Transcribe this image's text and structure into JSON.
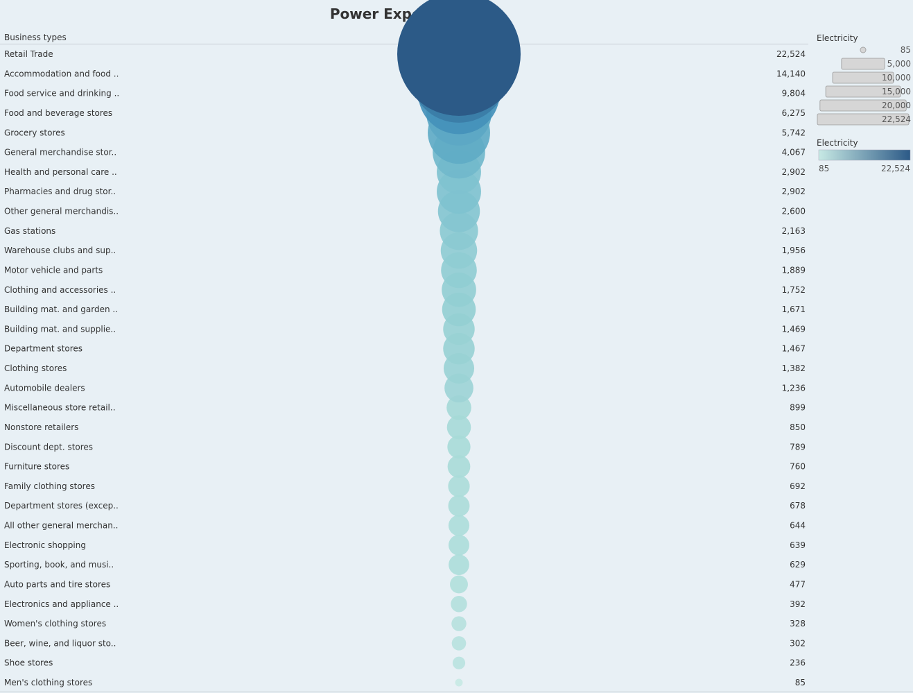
{
  "title": "Power Expenditure",
  "column_header": "Business types",
  "size_legend": {
    "title": "Electricity",
    "values": [
      "85",
      "5,000",
      "10,000",
      "15,000",
      "20,000",
      "22,524"
    ]
  },
  "color_legend": {
    "title": "Electricity",
    "min_label": "85",
    "max_label": "22,524",
    "colors": [
      "#c7e9e4",
      "#2c5a87"
    ]
  },
  "chart_data": {
    "type": "scatter",
    "title": "Power Expenditure",
    "category_header": "Business types",
    "measure": "Electricity",
    "categories": [
      "Retail Trade",
      "Accommodation and food ..",
      "Food service and drinking ..",
      "Food and beverage stores",
      "Grocery stores",
      "General merchandise stor..",
      "Health and personal care ..",
      "Pharmacies and drug stor..",
      "Other general merchandis..",
      "Gas stations",
      "Warehouse clubs and sup..",
      "Motor vehicle and parts",
      "Clothing and accessories ..",
      "Building mat. and garden ..",
      "Building mat. and supplie..",
      "Department stores",
      "Clothing stores",
      "Automobile dealers",
      "Miscellaneous store retail..",
      "Nonstore retailers",
      "Discount dept. stores",
      "Furniture stores",
      "Family clothing stores",
      "Department stores (excep..",
      "All other general merchan..",
      "Electronic shopping",
      "Sporting, book, and  musi..",
      "Auto parts and tire stores",
      "Electronics and appliance ..",
      "Women's clothing stores",
      "Beer, wine, and liquor sto..",
      "Shoe stores",
      "Men's clothing stores"
    ],
    "values": [
      22524,
      14140,
      9804,
      6275,
      5742,
      4067,
      2902,
      2902,
      2600,
      2163,
      1956,
      1889,
      1752,
      1671,
      1469,
      1467,
      1382,
      1236,
      899,
      850,
      789,
      760,
      692,
      678,
      644,
      639,
      629,
      477,
      392,
      328,
      302,
      236,
      85
    ],
    "value_labels": [
      "22,524",
      "14,140",
      "9,804",
      "6,275",
      "5,742",
      "4,067",
      "2,902",
      "2,902",
      "2,600",
      "2,163",
      "1,956",
      "1,889",
      "1,752",
      "1,671",
      "1,469",
      "1,467",
      "1,382",
      "1,236",
      "899",
      "850",
      "789",
      "760",
      "692",
      "678",
      "644",
      "639",
      "629",
      "477",
      "392",
      "328",
      "302",
      "236",
      "85"
    ],
    "size_encoding": "Electricity",
    "color_encoding": "Electricity",
    "color_range": [
      85,
      22524
    ]
  }
}
